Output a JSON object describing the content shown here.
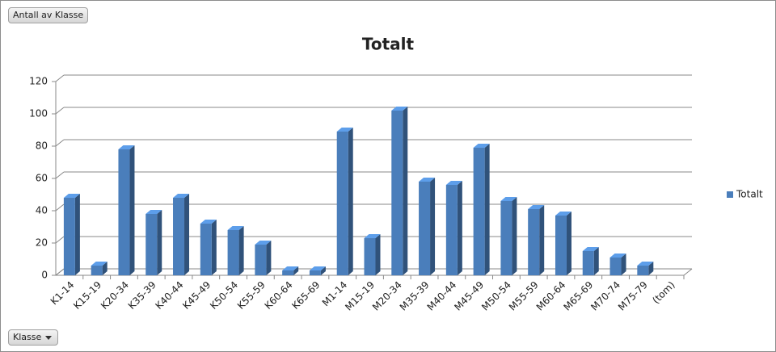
{
  "pivot_buttons": {
    "value_field": "Antall av Klasse",
    "axis_field": "Klasse"
  },
  "chart_data": {
    "type": "bar",
    "title": "Totalt",
    "categories": [
      "K1-14",
      "K15-19",
      "K20-34",
      "K35-39",
      "K40-44",
      "K45-49",
      "K50-54",
      "K55-59",
      "K60-64",
      "K65-69",
      "M1-14",
      "M15-19",
      "M20-34",
      "M35-39",
      "M40-44",
      "M45-49",
      "M50-54",
      "M55-59",
      "M60-64",
      "M65-69",
      "M70-74",
      "M75-79",
      "(tom)"
    ],
    "series": [
      {
        "name": "Totalt",
        "color": "#4a7ebb",
        "values": [
          48,
          6,
          78,
          38,
          48,
          32,
          28,
          19,
          3,
          3,
          89,
          23,
          102,
          58,
          56,
          79,
          46,
          41,
          37,
          15,
          11,
          6,
          null
        ]
      }
    ],
    "ylim": [
      0,
      120
    ],
    "yticks": [
      0,
      20,
      40,
      60,
      80,
      100,
      120
    ],
    "grid": true,
    "legend": "right"
  }
}
